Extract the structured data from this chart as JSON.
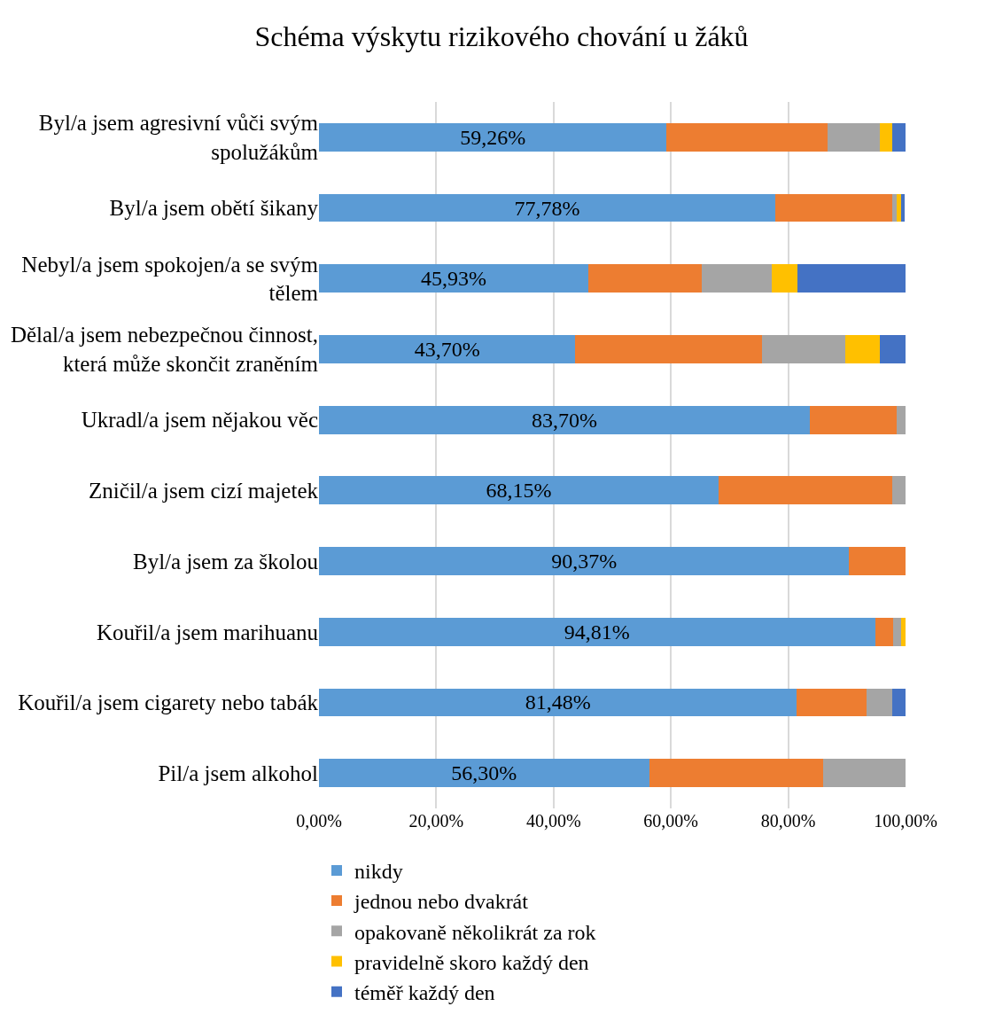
{
  "chart_data": {
    "type": "bar",
    "orientation": "horizontal",
    "stacked": true,
    "title": "Schéma výskytu rizikového chování u žáků",
    "categories": [
      "Byl/a jsem agresivní vůči svým spolužákům",
      "Byl/a jsem obětí šikany",
      "Nebyl/a jsem spokojen/a se svým tělem",
      "Dělal/a jsem nebezpečnou činnost, která může skončit zraněním",
      "Ukradl/a jsem nějakou věc",
      "Zničil/a jsem cizí majetek",
      "Byl/a jsem za školou",
      "Kouřil/a jsem marihuanu",
      "Kouřil/a jsem cigarety nebo tabák",
      "Pil/a jsem alkohol"
    ],
    "series": [
      {
        "name": "nikdy",
        "color": "#5b9bd5",
        "values": [
          59.26,
          77.78,
          45.93,
          43.7,
          83.7,
          68.15,
          90.37,
          94.81,
          81.48,
          56.3
        ],
        "value_labels": [
          "59,26%",
          "77,78%",
          "45,93%",
          "43,70%",
          "83,70%",
          "68,15%",
          "90,37%",
          "94,81%",
          "81,48%",
          "56,30%"
        ]
      },
      {
        "name": "jednou nebo dvakrát",
        "color": "#ed7d31",
        "values": [
          27.4,
          20.0,
          19.3,
          31.9,
          14.8,
          29.6,
          9.6,
          3.0,
          11.9,
          29.6
        ]
      },
      {
        "name": "opakovaně několikrát za rok",
        "color": "#a5a5a5",
        "values": [
          8.9,
          0.7,
          11.9,
          14.1,
          1.5,
          2.2,
          0,
          1.5,
          4.4,
          14.1
        ]
      },
      {
        "name": "pravidelně skoro každý den",
        "color": "#ffc000",
        "values": [
          2.2,
          0.7,
          4.4,
          5.9,
          0,
          0,
          0,
          0.7,
          0,
          0
        ]
      },
      {
        "name": "téměř každý den",
        "color": "#4472c4",
        "values": [
          2.2,
          0.7,
          18.5,
          4.4,
          0,
          0,
          0,
          0,
          2.2,
          0
        ]
      }
    ],
    "xlim": [
      0,
      100
    ],
    "xticks": [
      {
        "value": 0,
        "label": "0,00%"
      },
      {
        "value": 20,
        "label": "20,00%"
      },
      {
        "value": 40,
        "label": "40,00%"
      },
      {
        "value": 60,
        "label": "60,00%"
      },
      {
        "value": 80,
        "label": "80,00%"
      },
      {
        "value": 100,
        "label": "100,00%"
      }
    ],
    "grid": "x",
    "legend": "bottom"
  }
}
